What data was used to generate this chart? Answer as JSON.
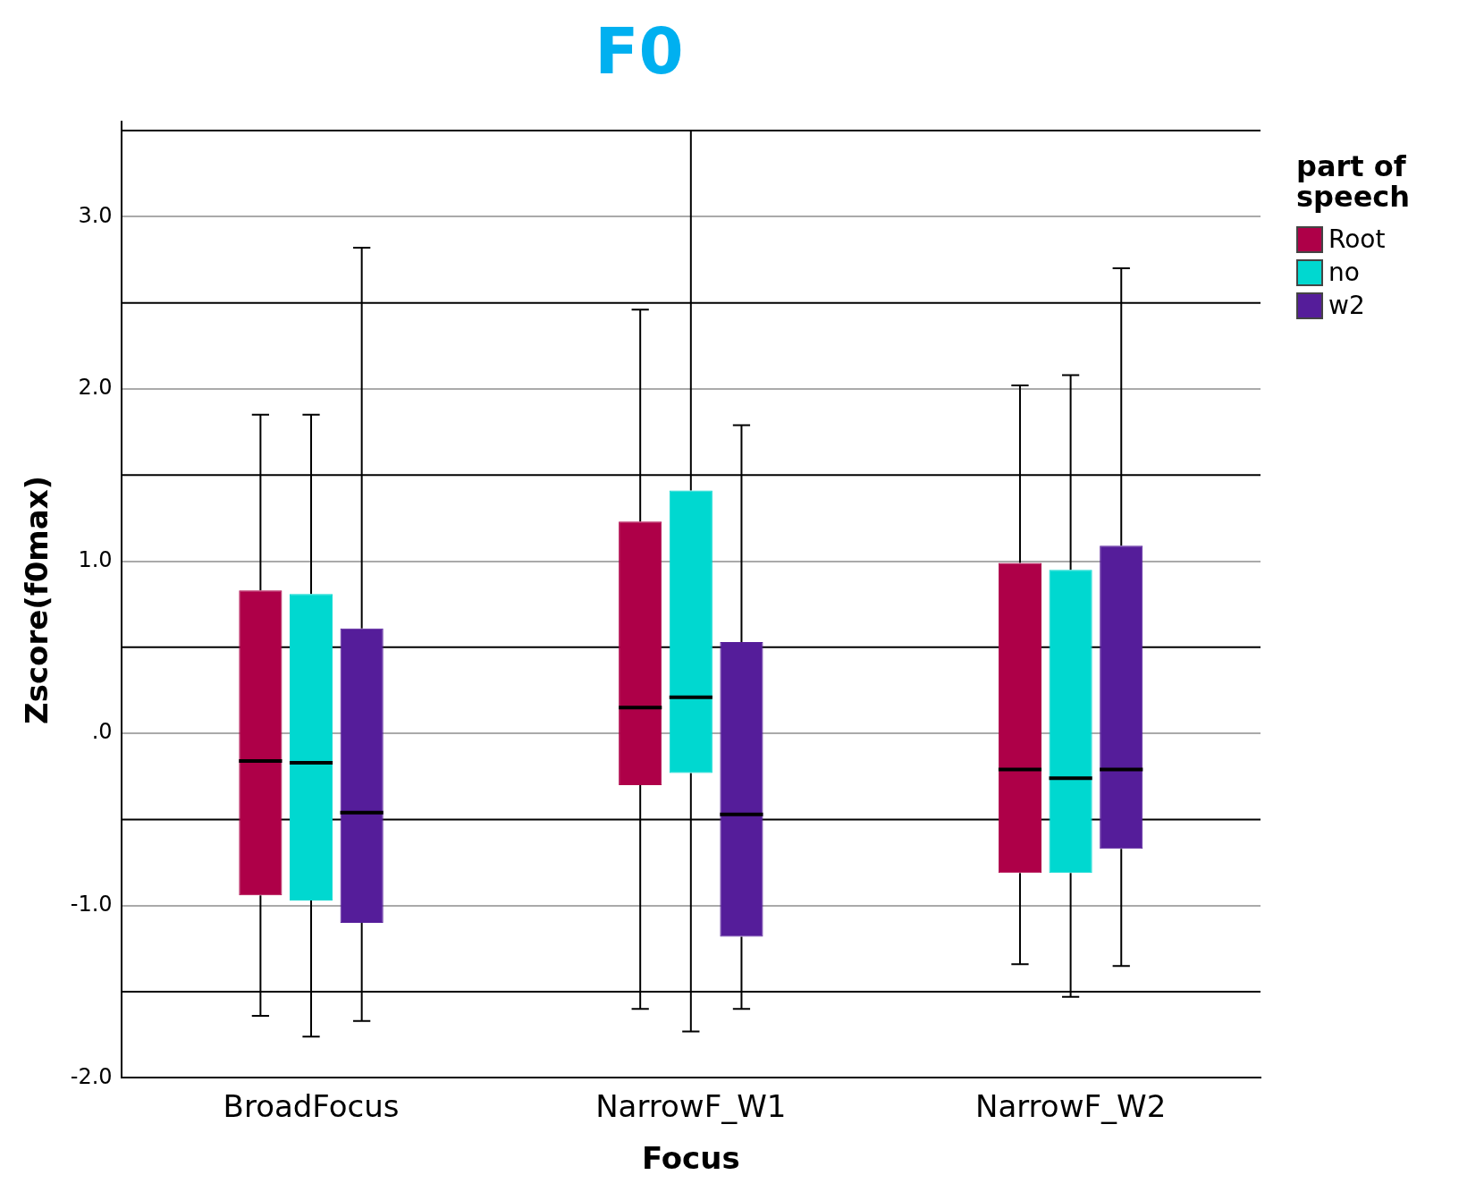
{
  "chart_data": {
    "type": "box",
    "title": "F0",
    "xlabel": "Focus",
    "ylabel": "Zscore(f0max)",
    "legend_title": "part of speech",
    "categories": [
      "BroadFocus",
      "NarrowF_W1",
      "NarrowF_W2"
    ],
    "series": [
      {
        "name": "Root",
        "color": "#ae0048",
        "boxes": [
          {
            "low": -1.64,
            "q1": -0.94,
            "median": -0.16,
            "q3": 0.83,
            "high": 1.85
          },
          {
            "low": -1.6,
            "q1": -0.3,
            "median": 0.15,
            "q3": 1.23,
            "high": 2.46
          },
          {
            "low": -1.34,
            "q1": -0.81,
            "median": -0.21,
            "q3": 0.99,
            "high": 2.02
          }
        ]
      },
      {
        "name": "no",
        "color": "#00d8d0",
        "boxes": [
          {
            "low": -1.76,
            "q1": -0.97,
            "median": -0.17,
            "q3": 0.81,
            "high": 1.85
          },
          {
            "low": -1.73,
            "q1": -0.23,
            "median": 0.21,
            "q3": 1.41,
            "high": 3.5
          },
          {
            "low": -1.53,
            "q1": -0.81,
            "median": -0.26,
            "q3": 0.95,
            "high": 2.08
          }
        ]
      },
      {
        "name": "w2",
        "color": "#551d9a",
        "boxes": [
          {
            "low": -1.67,
            "q1": -1.1,
            "median": -0.46,
            "q3": 0.61,
            "high": 2.82
          },
          {
            "low": -1.6,
            "q1": -1.18,
            "median": -0.47,
            "q3": 0.53,
            "high": 1.79
          },
          {
            "low": -1.35,
            "q1": -0.67,
            "median": -0.21,
            "q3": 1.09,
            "high": 2.7
          }
        ]
      }
    ],
    "ylim": [
      -2,
      3.55
    ],
    "yticks": [
      {
        "value": -2,
        "label": "-2.0"
      },
      {
        "value": -1,
        "label": "-1.0"
      },
      {
        "value": 0,
        "label": ".0"
      },
      {
        "value": 1,
        "label": "1.0"
      },
      {
        "value": 2,
        "label": "2.0"
      },
      {
        "value": 3,
        "label": "3.0"
      }
    ],
    "ref_lines": [
      {
        "axis": "y",
        "value": -1.5,
        "color": "#000000"
      },
      {
        "axis": "y",
        "value": -0.5,
        "color": "#000000"
      },
      {
        "axis": "y",
        "value": 0.5,
        "color": "#000000"
      },
      {
        "axis": "y",
        "value": 1.5,
        "color": "#000000"
      },
      {
        "axis": "y",
        "value": 2.5,
        "color": "#000000"
      },
      {
        "axis": "y",
        "value": 3.5,
        "color": "#000000"
      }
    ],
    "grid": "y",
    "legend": "top right"
  }
}
